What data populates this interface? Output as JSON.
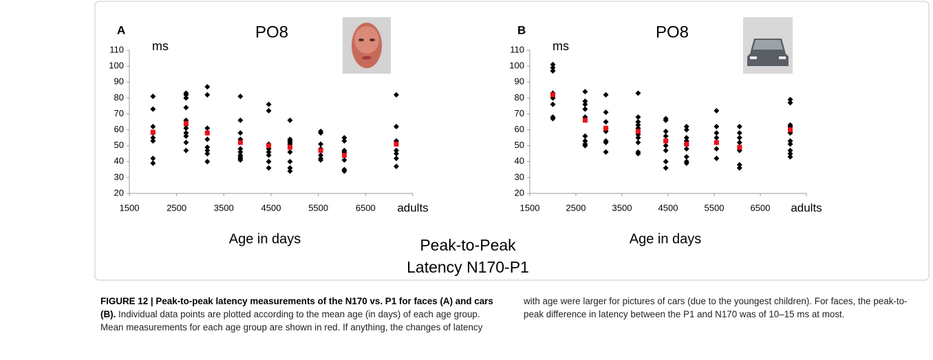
{
  "chart_data": [
    {
      "type": "scatter",
      "panel": "A",
      "title": "PO8",
      "y_unit": "ms",
      "xlabel": "Age in days",
      "xlim": [
        1500,
        7500
      ],
      "xticks": [
        1500,
        2500,
        3500,
        4500,
        5500,
        6500,
        {
          "value": 7500,
          "label": "adults"
        }
      ],
      "ylim": [
        20,
        110
      ],
      "yticks": [
        20,
        30,
        40,
        50,
        60,
        70,
        80,
        90,
        100,
        110
      ],
      "series": [
        {
          "color": "#000000",
          "marker": "diamond",
          "x": [
            2000,
            2000,
            2000,
            2000,
            2000,
            2000,
            2000,
            2000,
            2700,
            2700,
            2700,
            2700,
            2700,
            2700,
            2700,
            2700,
            2700,
            2700,
            2700,
            3150,
            3150,
            3150,
            3150,
            3150,
            3150,
            3150,
            3150,
            3150,
            3850,
            3850,
            3850,
            3850,
            3850,
            3850,
            3850,
            3850,
            3850,
            3850,
            4450,
            4450,
            4450,
            4450,
            4450,
            4450,
            4450,
            4450,
            4900,
            4900,
            4900,
            4900,
            4900,
            4900,
            4900,
            4900,
            4900,
            5550,
            5550,
            5550,
            5550,
            5550,
            5550,
            5550,
            6050,
            6050,
            6050,
            6050,
            6050,
            6050,
            6050,
            7150,
            7150,
            7150,
            7150,
            7150,
            7150,
            7150,
            7150
          ],
          "values": [
            81,
            73,
            62,
            58,
            55,
            53,
            42,
            39,
            83,
            82,
            80,
            74,
            66,
            63,
            61,
            58,
            56,
            52,
            47,
            87,
            82,
            61,
            58,
            54,
            49,
            47,
            45,
            40,
            81,
            66,
            58,
            54,
            48,
            46,
            44,
            43,
            42,
            41,
            76,
            72,
            51,
            48,
            46,
            44,
            40,
            36,
            66,
            54,
            53,
            52,
            51,
            46,
            40,
            36,
            34,
            59,
            58,
            51,
            48,
            44,
            42,
            41,
            55,
            53,
            47,
            46,
            41,
            35,
            34,
            82,
            62,
            53,
            52,
            47,
            45,
            42,
            37
          ]
        },
        {
          "color": "#e8141c",
          "marker": "square",
          "x": [
            2000,
            2700,
            3150,
            3850,
            4450,
            4900,
            5550,
            6050,
            7150
          ],
          "values": [
            58.5,
            64,
            58,
            52,
            50,
            49,
            47,
            44,
            51
          ]
        }
      ]
    },
    {
      "type": "scatter",
      "panel": "B",
      "title": "PO8",
      "y_unit": "ms",
      "xlabel": "Age in days",
      "xlim": [
        1500,
        7500
      ],
      "xticks": [
        1500,
        2500,
        3500,
        4500,
        5500,
        6500,
        {
          "value": 7500,
          "label": "adults"
        }
      ],
      "ylim": [
        20,
        110
      ],
      "yticks": [
        20,
        30,
        40,
        50,
        60,
        70,
        80,
        90,
        100,
        110
      ],
      "series": [
        {
          "color": "#000000",
          "marker": "diamond",
          "x": [
            2000,
            2000,
            2000,
            2000,
            2000,
            2000,
            2000,
            2000,
            2700,
            2700,
            2700,
            2700,
            2700,
            2700,
            2700,
            2700,
            2700,
            3150,
            3150,
            3150,
            3150,
            3150,
            3150,
            3150,
            3150,
            3850,
            3850,
            3850,
            3850,
            3850,
            3850,
            3850,
            3850,
            3850,
            3850,
            4450,
            4450,
            4450,
            4450,
            4450,
            4450,
            4450,
            4450,
            4450,
            4900,
            4900,
            4900,
            4900,
            4900,
            4900,
            4900,
            4900,
            4900,
            5550,
            5550,
            5550,
            5550,
            5550,
            5550,
            5550,
            6050,
            6050,
            6050,
            6050,
            6050,
            6050,
            6050,
            6050,
            7150,
            7150,
            7150,
            7150,
            7150,
            7150,
            7150,
            7150,
            7150,
            7150
          ],
          "values": [
            101,
            99,
            97,
            83,
            80,
            76,
            68,
            67,
            84,
            78,
            76,
            73,
            68,
            56,
            53,
            51,
            50,
            82,
            71,
            65,
            61,
            59,
            53,
            52,
            46,
            83,
            68,
            65,
            63,
            61,
            57,
            55,
            52,
            46,
            45,
            67,
            66,
            59,
            56,
            53,
            50,
            47,
            40,
            36,
            62,
            60,
            55,
            53,
            51,
            48,
            43,
            40,
            39,
            72,
            62,
            58,
            55,
            52,
            48,
            42,
            62,
            58,
            55,
            52,
            49,
            47,
            38,
            36,
            79,
            77,
            63,
            62,
            58,
            53,
            51,
            47,
            45,
            43
          ]
        },
        {
          "color": "#e8141c",
          "marker": "square",
          "x": [
            2000,
            2700,
            3150,
            3850,
            4450,
            4900,
            5550,
            6050,
            7150
          ],
          "values": [
            82,
            66,
            61,
            59,
            53,
            51,
            52,
            49,
            60
          ]
        }
      ]
    }
  ],
  "center_label": [
    "Peak-to-Peak",
    "Latency N170-P1"
  ],
  "caption": {
    "title": "FIGURE 12 | Peak-to-peak latency measurements of the N170 vs. P1 for faces (A) and cars (B).",
    "text": "Individual data points are plotted according to the mean age (in days) of each age group. Mean measurements for each age group are shown in red. If anything, the changes of latency with age were larger for pictures of cars (due to the youngest children). For faces, the peak-to-peak difference in latency between the P1 and N170 was of 10–15 ms at most."
  }
}
